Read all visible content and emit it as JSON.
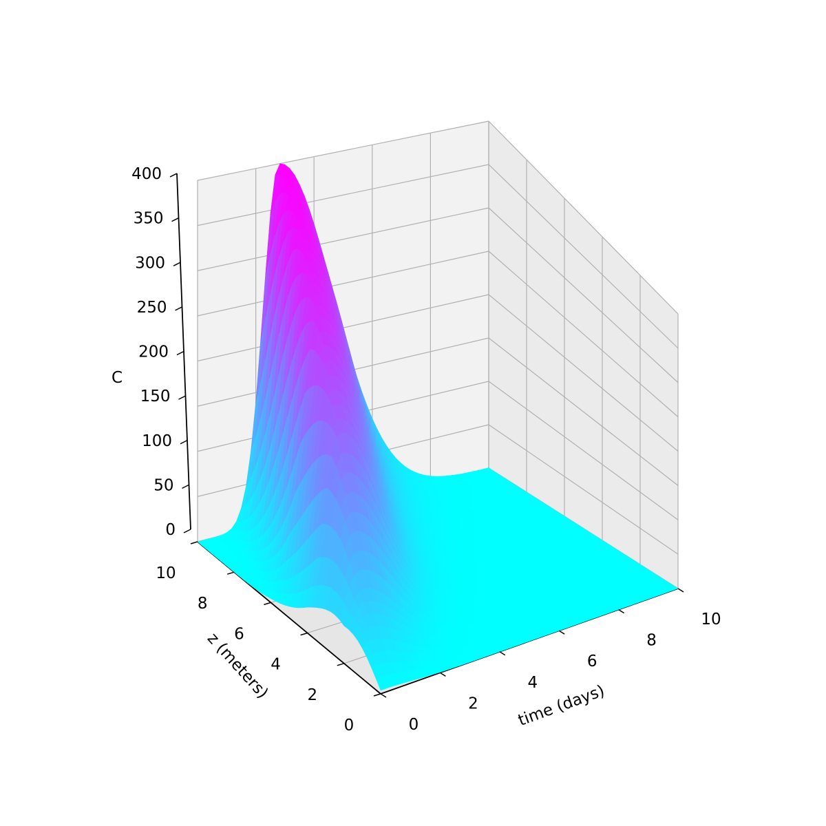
{
  "chart_data": {
    "type": "surface3d",
    "title": "",
    "xlabel": "time (days)",
    "ylabel": "z (meters)",
    "zlabel": "C",
    "xlim": [
      0,
      10
    ],
    "ylim": [
      0,
      10
    ],
    "zlim": [
      0,
      400
    ],
    "x_ticks": [
      "0",
      "2",
      "4",
      "6",
      "8",
      "10"
    ],
    "y_ticks": [
      "0",
      "2",
      "4",
      "6",
      "8",
      "10"
    ],
    "z_ticks": [
      "0",
      "50",
      "100",
      "150",
      "200",
      "250",
      "300",
      "350",
      "400"
    ],
    "grid": true,
    "colormap": "cool",
    "colormap_low": "#00ffff",
    "colormap_high": "#ff00ff",
    "pane_color": "#f2f2f2",
    "grid_color": "#b0b0b0",
    "surface": {
      "description_peak_time": 2.8,
      "peak_value": 400,
      "ridge": [
        {
          "z": 0.0,
          "t_center": 0.0,
          "amplitude": 5
        },
        {
          "z": 2.0,
          "t_center": 0.6,
          "amplitude": 90
        },
        {
          "z": 4.0,
          "t_center": 1.1,
          "amplitude": 240
        },
        {
          "z": 6.0,
          "t_center": 1.6,
          "amplitude": 330
        },
        {
          "z": 8.0,
          "t_center": 2.2,
          "amplitude": 380
        },
        {
          "z": 10.0,
          "t_center": 2.8,
          "amplitude": 400
        }
      ]
    }
  }
}
